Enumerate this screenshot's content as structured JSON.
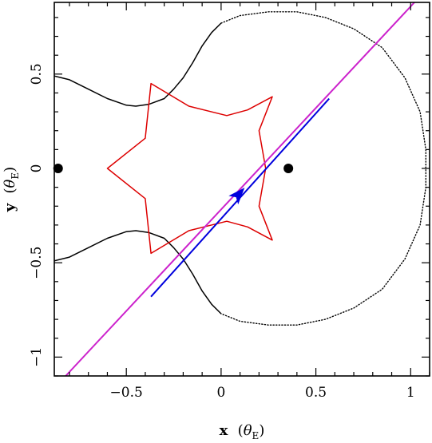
{
  "chart_data": {
    "type": "line",
    "xlabel": "x",
    "xlabel_unit": "θ",
    "xlabel_unit_sub": "E",
    "ylabel": "y",
    "ylabel_unit": "θ",
    "ylabel_unit_sub": "E",
    "xlim": [
      -0.88,
      1.1
    ],
    "ylim": [
      -1.1,
      0.88
    ],
    "xticks": [
      -0.5,
      0,
      0.5,
      1
    ],
    "xtick_labels": [
      "−0.5",
      "0",
      "0.5",
      "1"
    ],
    "yticks": [
      -1,
      -0.5,
      0,
      0.5
    ],
    "ytick_labels": [
      "−1",
      "−0.5",
      "0",
      "0.5"
    ],
    "grid": false,
    "lenses": [
      {
        "x": -0.86,
        "y": 0.0
      },
      {
        "x": 0.355,
        "y": 0.0
      }
    ],
    "caustic": {
      "color": "#dd0000",
      "points": [
        [
          -0.6,
          0.0
        ],
        [
          -0.4,
          0.16
        ],
        [
          -0.37,
          0.45
        ],
        [
          -0.17,
          0.33
        ],
        [
          0.03,
          0.28
        ],
        [
          0.14,
          0.31
        ],
        [
          0.27,
          0.38
        ],
        [
          0.2,
          0.2
        ],
        [
          0.235,
          0.0
        ],
        [
          0.2,
          -0.2
        ],
        [
          0.27,
          -0.38
        ],
        [
          0.14,
          -0.31
        ],
        [
          0.03,
          -0.28
        ],
        [
          -0.17,
          -0.33
        ],
        [
          -0.37,
          -0.45
        ],
        [
          -0.4,
          -0.16
        ],
        [
          -0.6,
          0.0
        ]
      ]
    },
    "critical_curves": [
      {
        "style": "solid",
        "color": "#000000",
        "points": [
          [
            -0.88,
            0.49
          ],
          [
            -0.8,
            0.47
          ],
          [
            -0.7,
            0.42
          ],
          [
            -0.6,
            0.37
          ],
          [
            -0.5,
            0.335
          ],
          [
            -0.45,
            0.33
          ],
          [
            -0.38,
            0.34
          ],
          [
            -0.3,
            0.37
          ],
          [
            -0.25,
            0.42
          ],
          [
            -0.2,
            0.48
          ],
          [
            -0.15,
            0.56
          ],
          [
            -0.1,
            0.65
          ],
          [
            -0.05,
            0.72
          ],
          [
            0.0,
            0.77
          ]
        ]
      },
      {
        "style": "dotted",
        "color": "#000000",
        "points": [
          [
            0.0,
            0.77
          ],
          [
            0.1,
            0.81
          ],
          [
            0.25,
            0.83
          ],
          [
            0.4,
            0.83
          ],
          [
            0.55,
            0.8
          ],
          [
            0.7,
            0.74
          ],
          [
            0.85,
            0.64
          ],
          [
            0.97,
            0.48
          ],
          [
            1.05,
            0.3
          ],
          [
            1.08,
            0.1
          ],
          [
            1.08,
            -0.1
          ],
          [
            1.05,
            -0.3
          ],
          [
            0.97,
            -0.48
          ],
          [
            0.85,
            -0.64
          ],
          [
            0.7,
            -0.74
          ],
          [
            0.55,
            -0.8
          ],
          [
            0.4,
            -0.83
          ],
          [
            0.25,
            -0.83
          ],
          [
            0.1,
            -0.81
          ],
          [
            0.0,
            -0.77
          ]
        ]
      },
      {
        "style": "solid",
        "color": "#000000",
        "points": [
          [
            0.0,
            -0.77
          ],
          [
            -0.05,
            -0.72
          ],
          [
            -0.1,
            -0.65
          ],
          [
            -0.15,
            -0.56
          ],
          [
            -0.2,
            -0.48
          ],
          [
            -0.25,
            -0.42
          ],
          [
            -0.3,
            -0.37
          ],
          [
            -0.38,
            -0.34
          ],
          [
            -0.45,
            -0.33
          ],
          [
            -0.5,
            -0.335
          ],
          [
            -0.6,
            -0.37
          ],
          [
            -0.7,
            -0.42
          ],
          [
            -0.8,
            -0.47
          ],
          [
            -0.88,
            -0.49
          ]
        ]
      }
    ],
    "source_trajectory": {
      "color": "#cc22cc",
      "points": [
        [
          -0.82,
          -1.1
        ],
        [
          1.02,
          0.88
        ]
      ]
    },
    "observed_path": {
      "color": "#0000dd",
      "points": [
        [
          -0.37,
          -0.68
        ],
        [
          0.57,
          0.37
        ]
      ],
      "arrow_at": [
        0.09,
        -0.14
      ]
    }
  }
}
